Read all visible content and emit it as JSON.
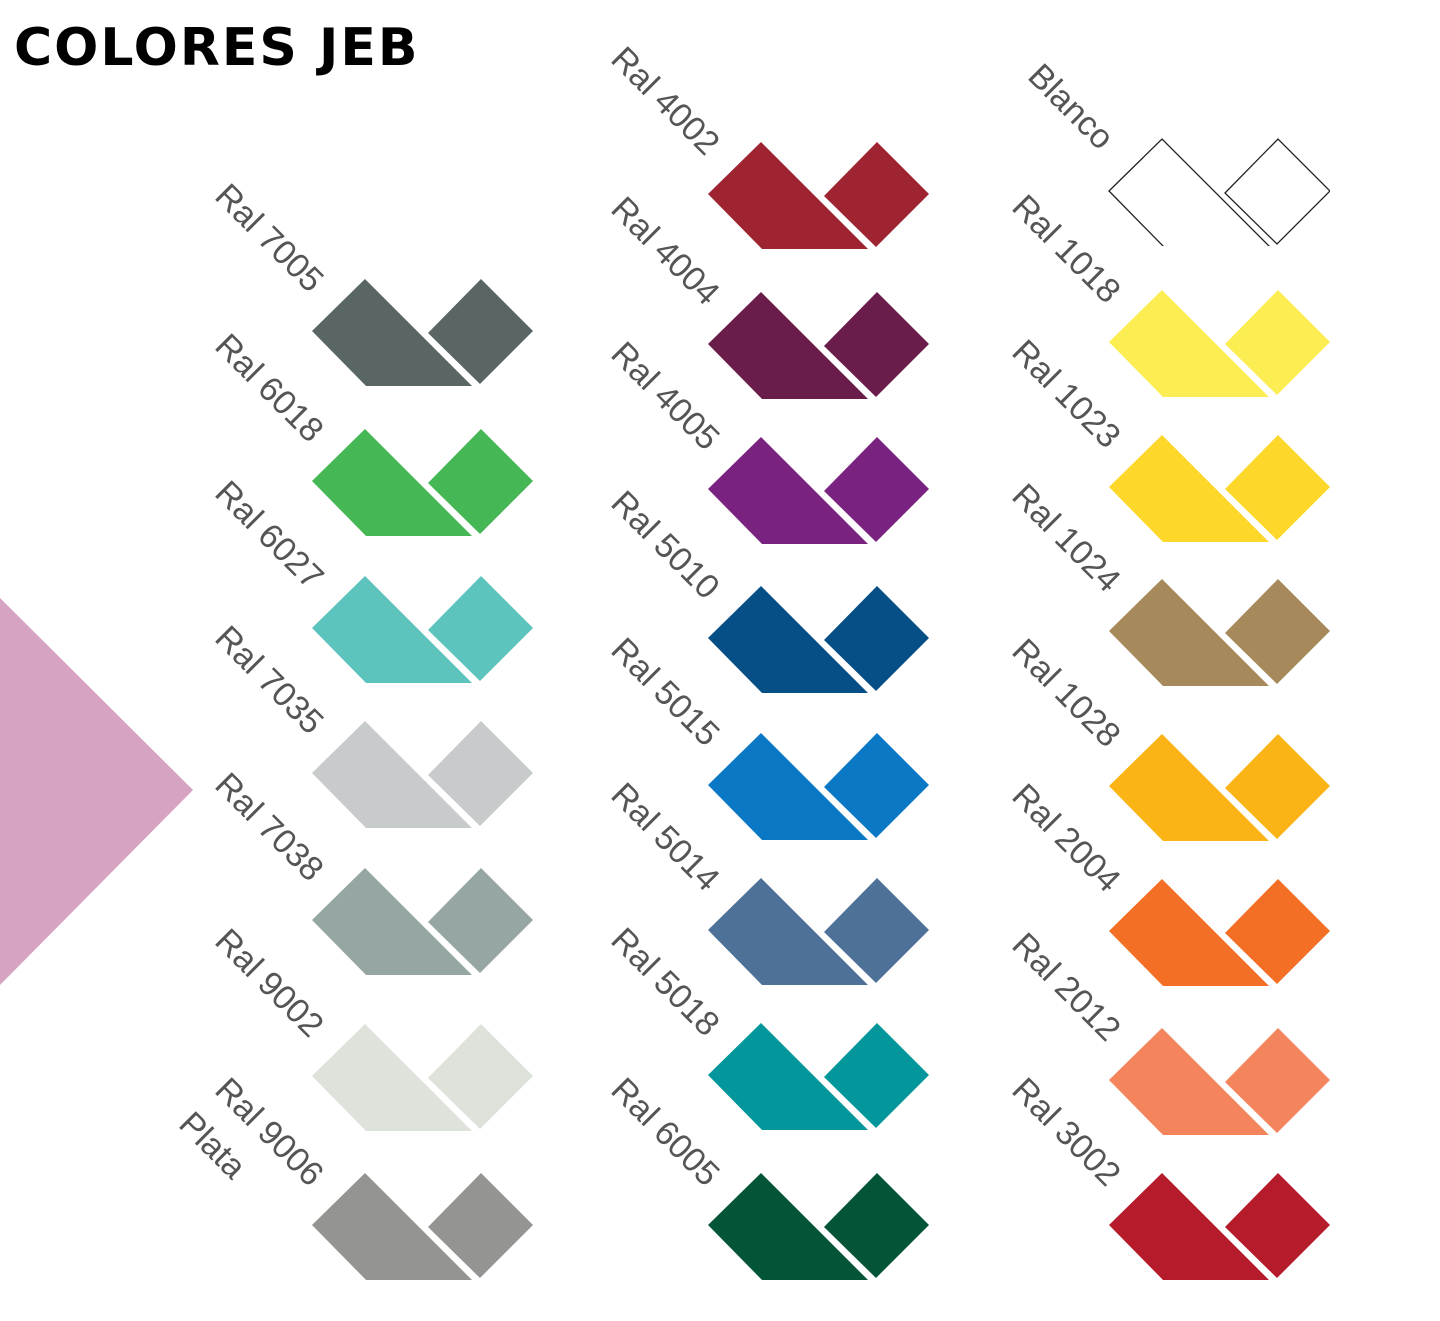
{
  "title": "COLORES JEB",
  "decoration_color": "#d7a3c2",
  "columns": [
    [
      {
        "label": "Ral 7005",
        "color": "#5a6566"
      },
      {
        "label": "Ral 6018",
        "color": "#45b754"
      },
      {
        "label": "Ral 6027",
        "color": "#5cc4bd"
      },
      {
        "label": "Ral 7035",
        "color": "#c8cbcb"
      },
      {
        "label": "Ral 7038",
        "color": "#95a6a3"
      },
      {
        "label": "Ral 9002",
        "color": "#dde2da"
      },
      {
        "label": "Ral 9006",
        "sublabel": "Plata",
        "color": "#949591"
      }
    ],
    [
      {
        "label": "Ral 4002",
        "color": "#9e2432"
      },
      {
        "label": "Ral 4004",
        "color": "#6a1d4b"
      },
      {
        "label": "Ral 4005",
        "color": "#7a2280"
      },
      {
        "label": "Ral 5010",
        "color": "#064e86"
      },
      {
        "label": "Ral 5015",
        "color": "#0a78c4"
      },
      {
        "label": "Ral 5014",
        "color": "#4e7197"
      },
      {
        "label": "Ral 5018",
        "color": "#03969a"
      },
      {
        "label": "Ral 6005",
        "color": "#045538"
      }
    ],
    [
      {
        "label": "Blanco",
        "color": "#ffffff",
        "outline": true
      },
      {
        "label": "Ral 1018",
        "color": "#fbed52"
      },
      {
        "label": "Ral 1023",
        "color": "#fdd82b"
      },
      {
        "label": "Ral 1024",
        "color": "#a68a5c"
      },
      {
        "label": "Ral 1028",
        "color": "#fbb416"
      },
      {
        "label": "Ral 2004",
        "color": "#f26f25"
      },
      {
        "label": "Ral 2012",
        "color": "#f4845b"
      },
      {
        "label": "Ral 3002",
        "color": "#b51b2a"
      }
    ]
  ]
}
